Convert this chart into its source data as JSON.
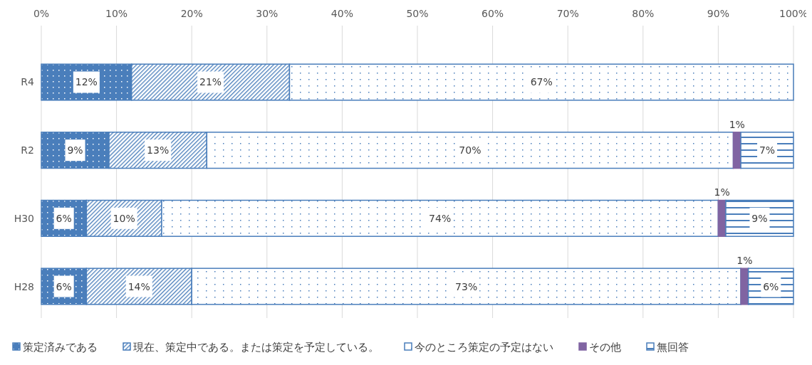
{
  "chart_data": {
    "type": "bar",
    "orientation": "horizontal",
    "stacked": true,
    "categories": [
      "R4",
      "R2",
      "H30",
      "H28"
    ],
    "series": [
      {
        "name": "策定済みである",
        "color": "#4a7ebb",
        "values": [
          12,
          9,
          6,
          6
        ],
        "value_labels": [
          "12%",
          "9%",
          "6%",
          "6%"
        ]
      },
      {
        "name": "現在、策定中である。または策定を予定している。",
        "color": "#4a7ebb",
        "values": [
          21,
          13,
          10,
          14
        ],
        "value_labels": [
          "21%",
          "13%",
          "10%",
          "14%"
        ]
      },
      {
        "name": "今のところ策定の予定はない",
        "color": "#4a7ebb",
        "values": [
          67,
          70,
          74,
          73
        ],
        "value_labels": [
          "67%",
          "70%",
          "74%",
          "73%"
        ]
      },
      {
        "name": "その他",
        "color": "#8064a2",
        "values": [
          null,
          1,
          1,
          1
        ],
        "value_labels": [
          null,
          "1%",
          "1%",
          "1%"
        ]
      },
      {
        "name": "無回答",
        "color": "#4a7ebb",
        "values": [
          null,
          7,
          9,
          6
        ],
        "value_labels": [
          null,
          "7%",
          "9%",
          "6%"
        ]
      }
    ],
    "xlim": [
      0,
      100
    ],
    "xticks": [
      {
        "value": 0,
        "label": "0%"
      },
      {
        "value": 10,
        "label": "10%"
      },
      {
        "value": 20,
        "label": "20%"
      },
      {
        "value": 30,
        "label": "30%"
      },
      {
        "value": 40,
        "label": "40%"
      },
      {
        "value": 50,
        "label": "50%"
      },
      {
        "value": 60,
        "label": "60%"
      },
      {
        "value": 70,
        "label": "70%"
      },
      {
        "value": 80,
        "label": "80%"
      },
      {
        "value": 90,
        "label": "90%"
      },
      {
        "value": 100,
        "label": "100%"
      }
    ],
    "grid": "x",
    "legend": "bottom"
  }
}
